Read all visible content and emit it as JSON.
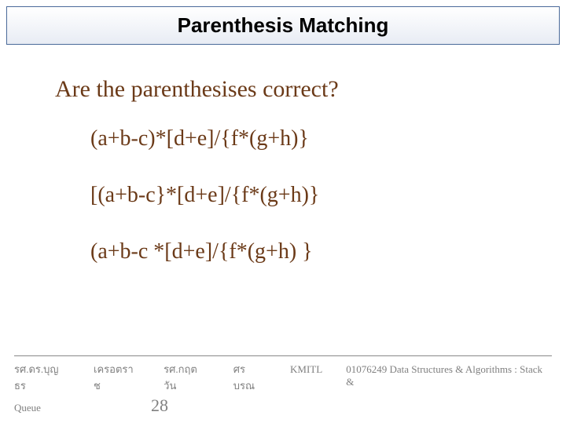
{
  "title": "Parenthesis Matching",
  "question": "Are the parenthesises  correct?",
  "expressions": [
    "(a+b-c)*[d+e]/{f*(g+h)}",
    "[(a+b-c}*[d+e]/{f*(g+h)}",
    "(a+b-c *[d+e]/{f*(g+h) }"
  ],
  "footer": {
    "author1": "รศ.ดร.บุญธร",
    "author2": "เครอตราช",
    "author3": "รศ.กฤตวัน",
    "author4": "ศรบรณ",
    "institution": "KMITL",
    "course": "01076249 Data Structures & Algorithms : Stack &",
    "course2": "Queue",
    "page": "28"
  },
  "colors": {
    "text_brown": "#6b3a18",
    "title_black": "#000000",
    "footer_gray": "#808080",
    "title_border": "#4a6a9a"
  }
}
